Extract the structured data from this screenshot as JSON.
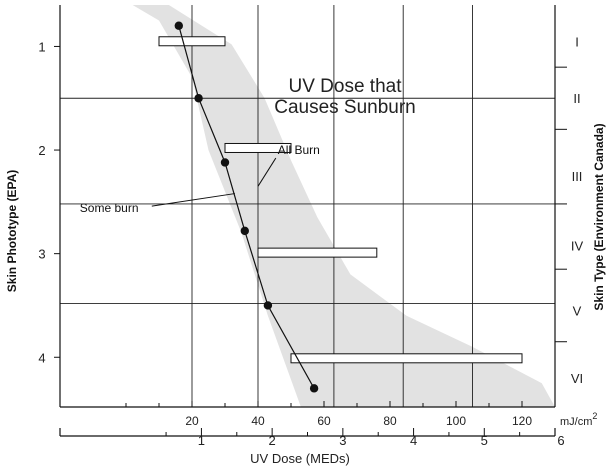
{
  "chart_data": {
    "type": "line",
    "title": [
      "UV Dose that",
      "Causes Sunburn"
    ],
    "xlabel": "UV Dose (MEDs)",
    "ylabel_left": "Skin Phototype (EPA)",
    "ylabel_right": "Skin Type (Environment Canada)",
    "x_unit_label": "mJ/cm",
    "x_unit_superscript": "2",
    "x_mj": {
      "lim": [
        -20,
        130
      ],
      "ticks": [
        20,
        40,
        60,
        80,
        100,
        120
      ],
      "tick_labels": [
        "20",
        "40",
        "60",
        "80",
        "100",
        "120"
      ],
      "minor_ticks": [
        0,
        10,
        30,
        50,
        70,
        90,
        110
      ]
    },
    "x_med": {
      "lim": [
        -1,
        6
      ],
      "ticks": [
        1,
        2,
        3,
        4,
        5,
        6
      ],
      "tick_labels": [
        "1",
        "2",
        "3",
        "4",
        "5",
        "6"
      ],
      "minor_ticks": [
        0.5,
        1.5,
        2.5,
        3.5,
        4.5,
        5.5
      ]
    },
    "y_left": {
      "lim": [
        0.6,
        4.48
      ],
      "ticks": [
        1,
        2,
        3,
        4
      ],
      "tick_labels": [
        "1",
        "2",
        "3",
        "4"
      ]
    },
    "y_right": {
      "tick_labels": [
        "I",
        "II",
        "III",
        "IV",
        "V",
        "VI"
      ],
      "label_positions": [
        0.95,
        1.5,
        2.25,
        2.92,
        3.55,
        4.2
      ],
      "divider_ticks": [
        1.2,
        1.8,
        2.52,
        3.15,
        3.85
      ],
      "grid_lines": [
        1.5,
        2.52,
        3.48
      ]
    },
    "grid": {
      "x_mj": [
        20,
        40,
        63,
        84,
        105
      ]
    },
    "series": [
      {
        "points": [
          {
            "x": 16,
            "y": 0.8
          },
          {
            "x": 22,
            "y": 1.5
          },
          {
            "x": 30,
            "y": 2.12
          },
          {
            "x": 36,
            "y": 2.78
          },
          {
            "x": 43,
            "y": 3.5
          },
          {
            "x": 57,
            "y": 4.3
          }
        ]
      }
    ],
    "ranges": [
      {
        "y": 0.95,
        "x_min": 10,
        "x_max": 30
      },
      {
        "y": 1.98,
        "x_min": 30,
        "x_max": 50
      },
      {
        "y": 2.99,
        "x_min": 40,
        "x_max": 76
      },
      {
        "y": 4.01,
        "x_min": 50,
        "x_max": 120
      }
    ],
    "band": {
      "left": [
        [
          2,
          0.6
        ],
        [
          10,
          0.75
        ],
        [
          20,
          1.3
        ],
        [
          25,
          2.0
        ],
        [
          35,
          2.8
        ],
        [
          43,
          3.6
        ],
        [
          53,
          4.48
        ]
      ],
      "right": [
        [
          13,
          0.6
        ],
        [
          32,
          0.98
        ],
        [
          42,
          1.5
        ],
        [
          50,
          2.1
        ],
        [
          58,
          2.65
        ],
        [
          68,
          3.2
        ],
        [
          85,
          3.6
        ],
        [
          105,
          3.9
        ],
        [
          126,
          4.25
        ],
        [
          130,
          4.48
        ]
      ]
    },
    "annotations": [
      {
        "text": "All Burn",
        "x": 46,
        "y": 2.0,
        "arrow_to": [
          40,
          2.35
        ]
      },
      {
        "text": "Some burn",
        "x": -14,
        "y": 2.56,
        "arrow_to": [
          33,
          2.42
        ]
      }
    ]
  }
}
